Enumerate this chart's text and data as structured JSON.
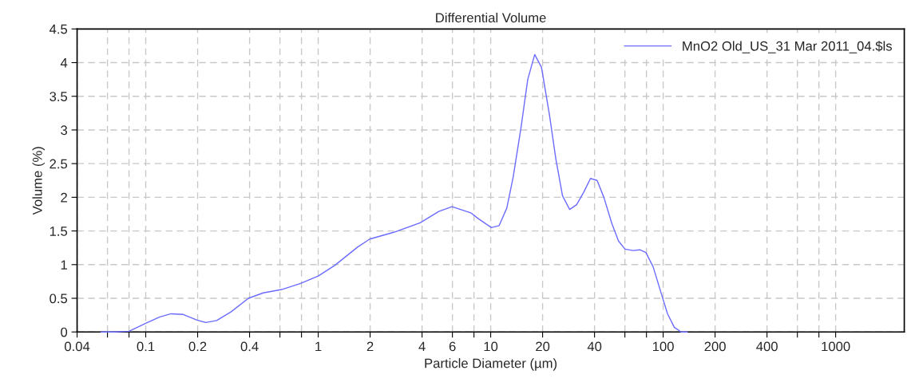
{
  "chart_data": {
    "type": "line",
    "title": "Differential Volume",
    "xlabel": "Particle Diameter (µm)",
    "ylabel": "Volume (%)",
    "log": "x",
    "xlim": [
      0.04,
      2500
    ],
    "xticks": [
      0.04,
      {
        "value": 0.06,
        "label": null
      },
      {
        "value": 0.08,
        "label": null
      },
      0.1,
      0.2,
      0.4,
      {
        "value": 0.6,
        "label": null
      },
      {
        "value": 0.8,
        "label": null
      },
      1,
      2,
      4,
      6,
      {
        "value": 8,
        "label": null
      },
      10,
      20,
      40,
      {
        "value": 60,
        "label": null
      },
      {
        "value": 80,
        "label": null
      },
      100,
      200,
      400,
      {
        "value": 600,
        "label": null
      },
      {
        "value": 800,
        "label": null
      },
      1000
    ],
    "ylim": [
      0,
      4.5
    ],
    "yticks": [
      0,
      0.5,
      1,
      1.5,
      2,
      2.5,
      3,
      3.5,
      4,
      4.5
    ],
    "grid": true,
    "legend": "top right",
    "line_style": "solid",
    "marker": "none",
    "series": [
      {
        "name": "MnO2 Old_US_31 Mar 2011_04.$ls",
        "color": "#6b6bff",
        "x": [
          0.055,
          0.066,
          0.08,
          0.1,
          0.12,
          0.14,
          0.165,
          0.197,
          0.223,
          0.258,
          0.313,
          0.394,
          0.48,
          0.614,
          0.79,
          1.0,
          1.25,
          1.69,
          1.99,
          2.74,
          3.9,
          5.0,
          5.97,
          7.66,
          8.5,
          10.1,
          11.2,
          12.4,
          13.5,
          15.0,
          16.4,
          18.0,
          19.7,
          21.9,
          23.9,
          26.1,
          28.7,
          31.5,
          34.7,
          37.9,
          41.4,
          45.3,
          50.4,
          55.1,
          60.1,
          66.9,
          73.2,
          79.4,
          87.4,
          98.9,
          106,
          116,
          127,
          138
        ],
        "values": [
          0,
          0,
          0.01,
          0.13,
          0.22,
          0.27,
          0.26,
          0.18,
          0.14,
          0.17,
          0.3,
          0.5,
          0.58,
          0.63,
          0.72,
          0.83,
          0.99,
          1.26,
          1.38,
          1.48,
          1.62,
          1.79,
          1.86,
          1.77,
          1.68,
          1.55,
          1.58,
          1.84,
          2.3,
          3.04,
          3.75,
          4.12,
          3.93,
          3.23,
          2.56,
          2.02,
          1.82,
          1.89,
          2.08,
          2.28,
          2.25,
          2.0,
          1.61,
          1.35,
          1.23,
          1.21,
          1.22,
          1.18,
          0.97,
          0.52,
          0.27,
          0.07,
          0,
          0
        ]
      }
    ]
  }
}
